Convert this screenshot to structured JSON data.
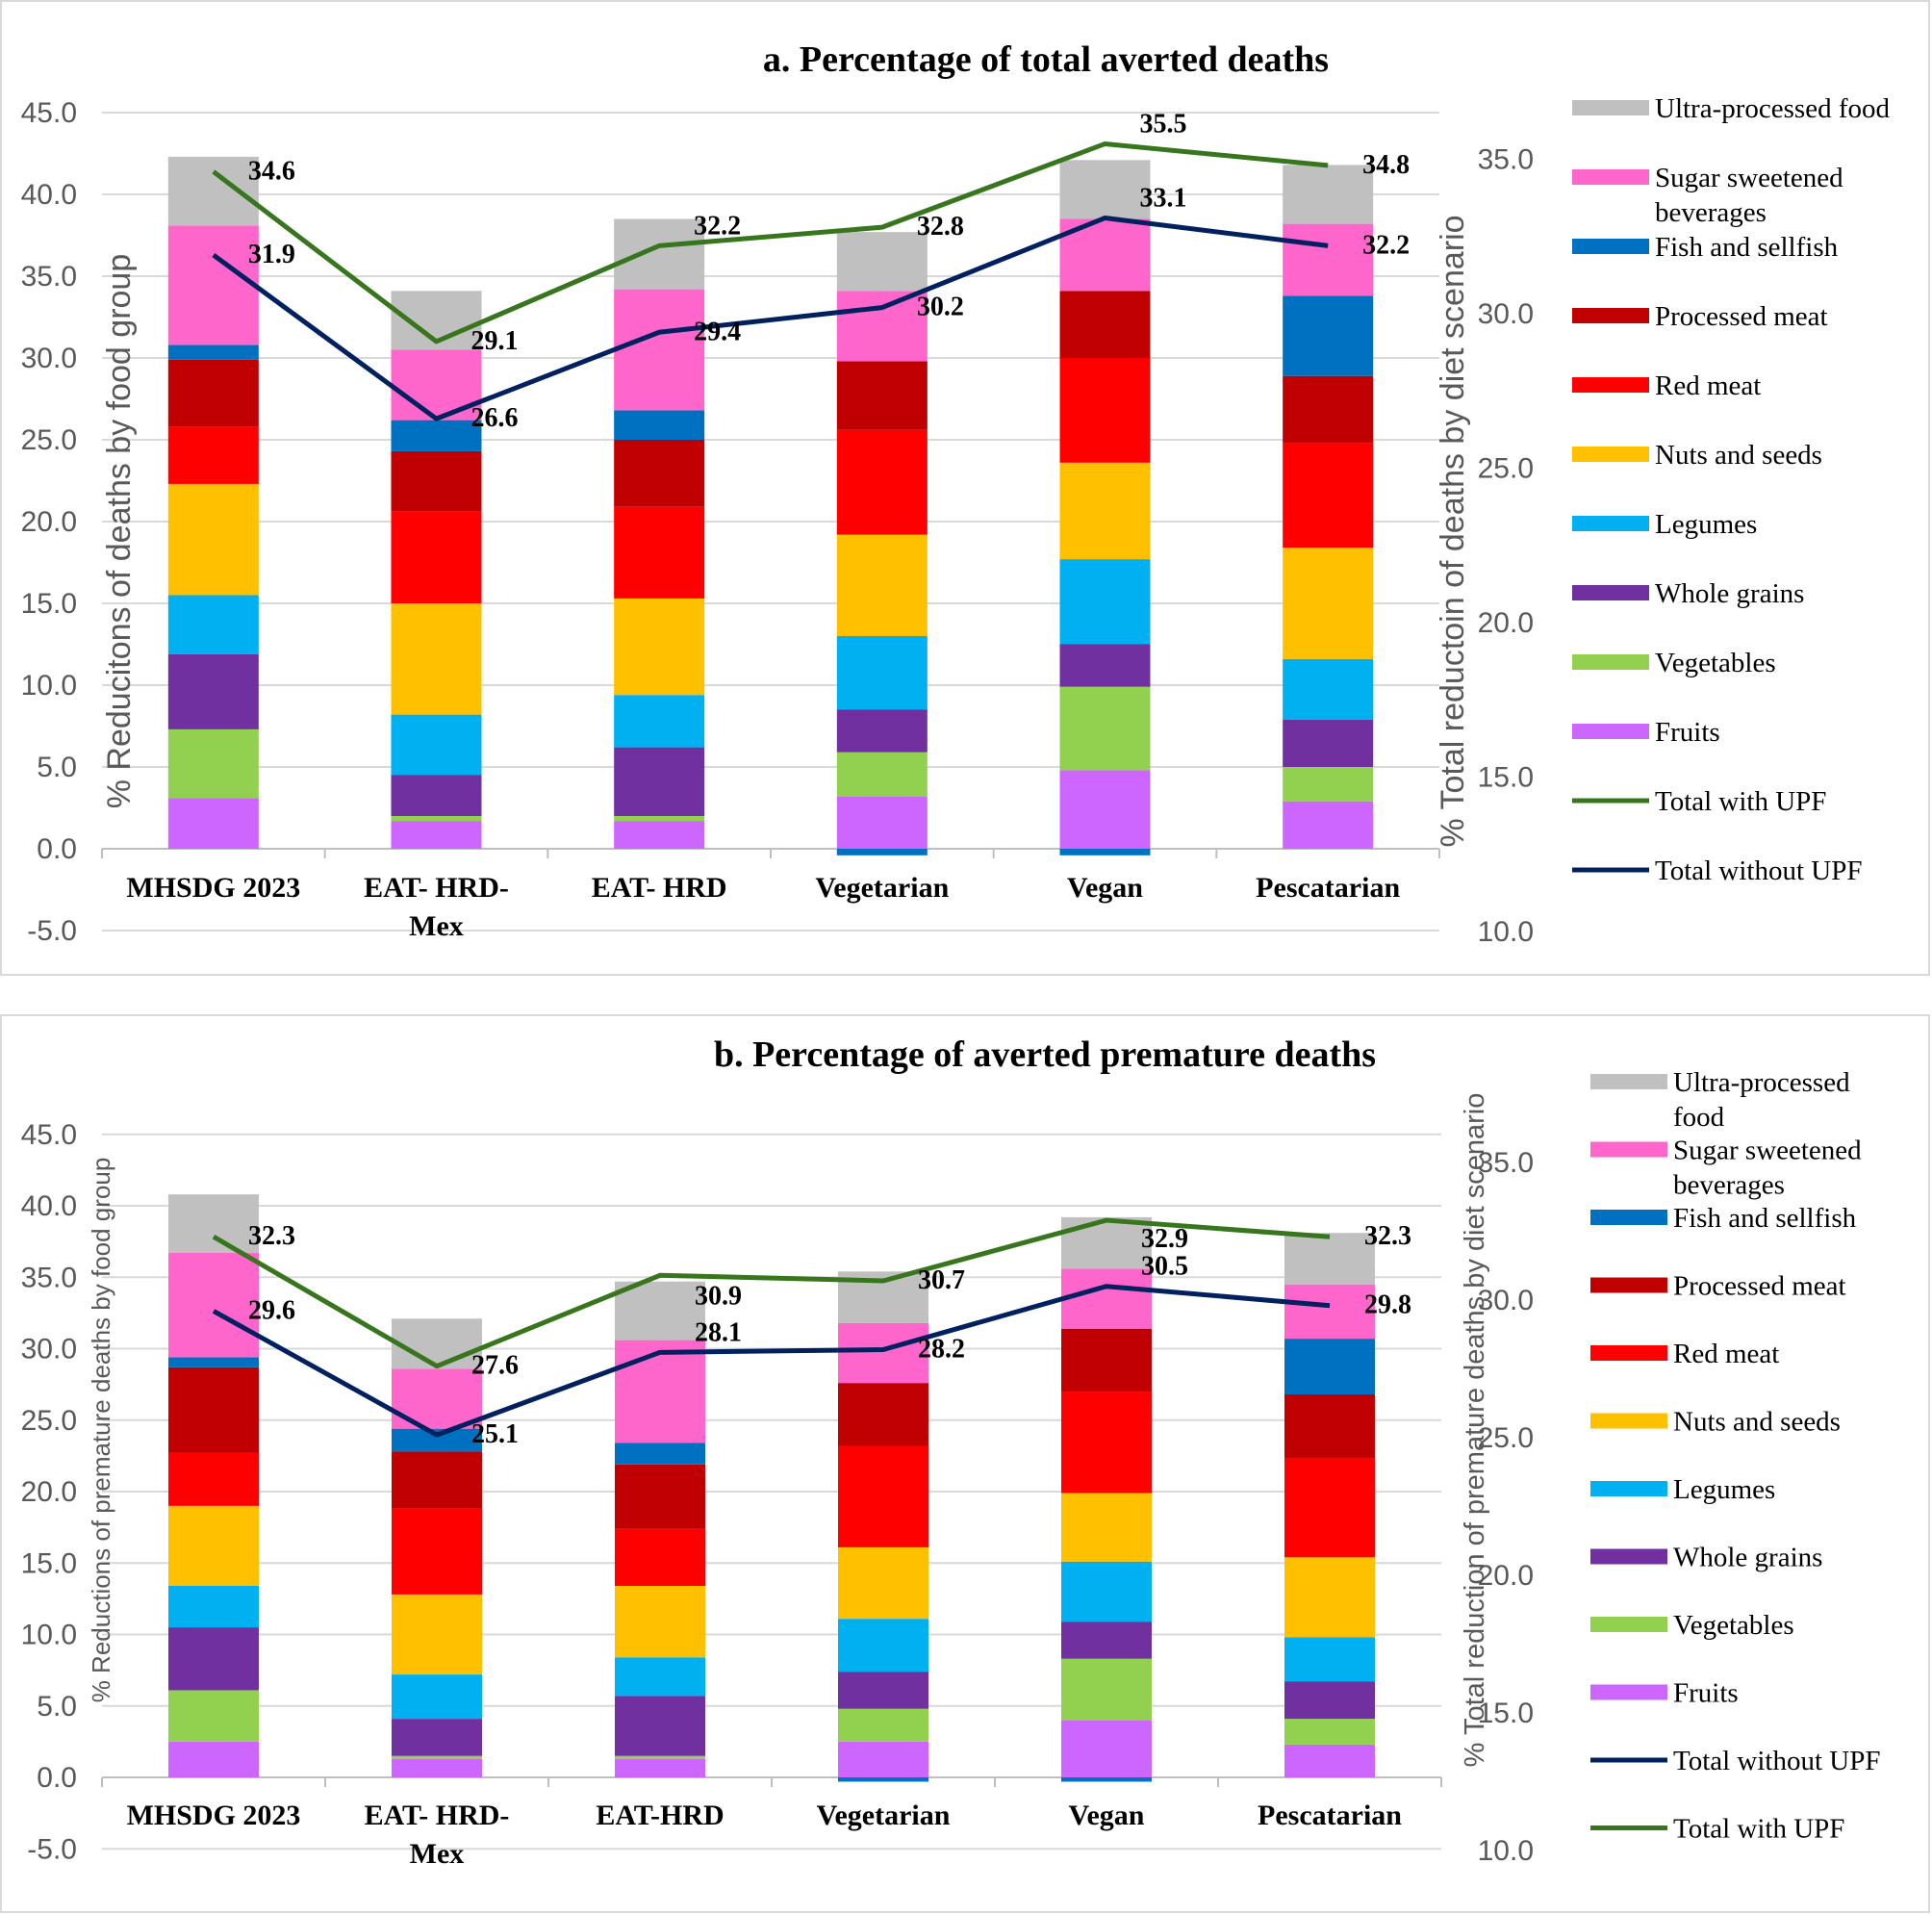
{
  "chart_data": [
    {
      "type": "bar",
      "title": "a. Percentage of total averted deaths",
      "ylabel": "% Reducitons of deaths  by food group",
      "y2label": "% Total reductoin of deaths by diet scenario",
      "ylim": [
        -5,
        45
      ],
      "y2lim": [
        10,
        37.5
      ],
      "yticks": [
        "45.0",
        "40.0",
        "35.0",
        "30.0",
        "25.0",
        "20.0",
        "15.0",
        "10.0",
        "5.0",
        "0.0",
        "-5.0"
      ],
      "y2ticks": [
        "35.0",
        "30.0",
        "25.0",
        "20.0",
        "15.0",
        "10.0"
      ],
      "categories": [
        "MHSDG 2023",
        "EAT- HRD-Mex",
        "EAT- HRD",
        "Vegetarian",
        "Vegan",
        "Pescatarian"
      ],
      "category_lines": [
        [
          "MHSDG 2023"
        ],
        [
          "EAT- HRD-",
          "Mex"
        ],
        [
          "EAT- HRD"
        ],
        [
          "Vegetarian"
        ],
        [
          "Vegan"
        ],
        [
          "Pescatarian"
        ]
      ],
      "stack_series": [
        {
          "name": "Fruits",
          "color": "#CC66FF",
          "values": [
            3.1,
            1.7,
            1.7,
            3.2,
            4.8,
            2.9
          ]
        },
        {
          "name": "Vegetables",
          "color": "#92D050",
          "values": [
            4.2,
            0.3,
            0.3,
            2.7,
            5.1,
            2.1
          ]
        },
        {
          "name": "Whole grains",
          "color": "#7030A0",
          "values": [
            4.6,
            2.5,
            4.2,
            2.6,
            2.6,
            2.9
          ]
        },
        {
          "name": "Legumes",
          "color": "#00B0F0",
          "values": [
            3.6,
            3.7,
            3.2,
            4.5,
            5.2,
            3.7
          ]
        },
        {
          "name": "Nuts and seeds",
          "color": "#FFC000",
          "values": [
            6.8,
            6.8,
            5.9,
            6.2,
            5.9,
            6.8
          ]
        },
        {
          "name": "Red meat",
          "color": "#FF0000",
          "values": [
            3.5,
            5.6,
            5.6,
            6.4,
            6.4,
            6.4
          ]
        },
        {
          "name": "Processed meat",
          "color": "#C00000",
          "values": [
            4.1,
            3.7,
            4.1,
            4.2,
            4.1,
            4.1
          ]
        },
        {
          "name": "Fish and sellfish",
          "color": "#0070C0",
          "values": [
            0.9,
            1.9,
            1.8,
            -0.4,
            -0.4,
            4.9
          ]
        },
        {
          "name": "Sugar sweetened beverages",
          "color": "#FF66CC",
          "values": [
            7.3,
            4.3,
            7.4,
            4.3,
            4.4,
            4.4
          ]
        },
        {
          "name": "Ultra-processed food",
          "color": "#C0C0C0",
          "values": [
            4.2,
            3.6,
            4.3,
            3.6,
            3.6,
            3.6
          ]
        }
      ],
      "line_series": [
        {
          "name": "Total with UPF",
          "color": "#38761D",
          "values": [
            34.6,
            29.1,
            32.2,
            32.8,
            35.5,
            34.8
          ],
          "labels": [
            "34.6",
            "29.1",
            "32.2",
            "32.8",
            "35.5",
            "34.8"
          ]
        },
        {
          "name": "Total without UPF",
          "color": "#002060",
          "values": [
            31.9,
            26.6,
            29.4,
            30.2,
            33.1,
            32.2
          ],
          "labels": [
            "31.9",
            "26.6",
            "29.4",
            "30.2",
            "33.1",
            "32.2"
          ]
        }
      ],
      "legend": [
        {
          "lines": [
            "Ultra-processed food"
          ],
          "color": "#C0C0C0",
          "kind": "bar"
        },
        {
          "lines": [
            "Sugar sweetened",
            "beverages"
          ],
          "color": "#FF66CC",
          "kind": "bar"
        },
        {
          "lines": [
            "Fish and sellfish"
          ],
          "color": "#0070C0",
          "kind": "bar"
        },
        {
          "lines": [
            "Processed meat"
          ],
          "color": "#C00000",
          "kind": "bar"
        },
        {
          "lines": [
            "Red meat"
          ],
          "color": "#FF0000",
          "kind": "bar"
        },
        {
          "lines": [
            "Nuts and seeds"
          ],
          "color": "#FFC000",
          "kind": "bar"
        },
        {
          "lines": [
            "Legumes"
          ],
          "color": "#00B0F0",
          "kind": "bar"
        },
        {
          "lines": [
            "Whole grains"
          ],
          "color": "#7030A0",
          "kind": "bar"
        },
        {
          "lines": [
            "Vegetables"
          ],
          "color": "#92D050",
          "kind": "bar"
        },
        {
          "lines": [
            "Fruits"
          ],
          "color": "#CC66FF",
          "kind": "bar"
        },
        {
          "lines": [
            "Total with UPF"
          ],
          "color": "#38761D",
          "kind": "line"
        },
        {
          "lines": [
            "Total without UPF"
          ],
          "color": "#002060",
          "kind": "line"
        }
      ],
      "legend_position": "right",
      "grid": true
    },
    {
      "type": "bar",
      "title": "b. Percentage of averted premature deaths",
      "ylabel": "% Reductions of premature deaths by food group",
      "y2label": "% Total reduction of premature deaths by diet scenario",
      "ylim": [
        -5,
        45
      ],
      "y2lim": [
        10,
        37.5
      ],
      "yticks": [
        "45.0",
        "40.0",
        "35.0",
        "30.0",
        "25.0",
        "20.0",
        "15.0",
        "10.0",
        "5.0",
        "0.0",
        "-5.0"
      ],
      "y2ticks": [
        "35.0",
        "30.0",
        "25.0",
        "20.0",
        "15.0",
        "10.0"
      ],
      "categories": [
        "MHSDG 2023",
        "EAT- HRD-Mex",
        "EAT-HRD",
        "Vegetarian",
        "Vegan",
        "Pescatarian"
      ],
      "category_lines": [
        [
          "MHSDG 2023"
        ],
        [
          "EAT- HRD-",
          "Mex"
        ],
        [
          "EAT-HRD"
        ],
        [
          "Vegetarian"
        ],
        [
          "Vegan"
        ],
        [
          "Pescatarian"
        ]
      ],
      "stack_series": [
        {
          "name": "Fruits",
          "color": "#CC66FF",
          "values": [
            2.5,
            1.3,
            1.3,
            2.5,
            4.0,
            2.3
          ]
        },
        {
          "name": "Vegetables",
          "color": "#92D050",
          "values": [
            3.6,
            0.2,
            0.2,
            2.3,
            4.3,
            1.8
          ]
        },
        {
          "name": "Whole grains",
          "color": "#7030A0",
          "values": [
            4.4,
            2.6,
            4.2,
            2.6,
            2.6,
            2.6
          ]
        },
        {
          "name": "Legumes",
          "color": "#00B0F0",
          "values": [
            2.9,
            3.1,
            2.7,
            3.7,
            4.2,
            3.1
          ]
        },
        {
          "name": "Nuts and seeds",
          "color": "#FFC000",
          "values": [
            5.6,
            5.6,
            5.0,
            5.0,
            4.8,
            5.6
          ]
        },
        {
          "name": "Red meat",
          "color": "#FF0000",
          "values": [
            3.7,
            6.0,
            4.0,
            7.1,
            7.1,
            6.9
          ]
        },
        {
          "name": "Processed meat",
          "color": "#C00000",
          "values": [
            6.0,
            4.0,
            4.5,
            4.4,
            4.4,
            4.5
          ]
        },
        {
          "name": "Fish and sellfish",
          "color": "#0070C0",
          "values": [
            0.7,
            1.6,
            1.5,
            -0.3,
            -0.3,
            3.9
          ]
        },
        {
          "name": "Sugar sweetened beverages",
          "color": "#FF66CC",
          "values": [
            7.3,
            4.2,
            7.2,
            4.2,
            4.2,
            3.8
          ]
        },
        {
          "name": "Ultra-processed food",
          "color": "#C0C0C0",
          "values": [
            4.1,
            3.5,
            4.1,
            3.6,
            3.6,
            3.6
          ]
        }
      ],
      "line_series": [
        {
          "name": "Total without UPF",
          "color": "#002060",
          "values": [
            29.6,
            25.1,
            28.1,
            28.2,
            30.5,
            29.8
          ],
          "labels": [
            "29.6",
            "25.1",
            "28.1",
            "28.2",
            "30.5",
            "29.8"
          ]
        },
        {
          "name": "Total with UPF",
          "color": "#38761D",
          "values": [
            32.3,
            27.6,
            30.9,
            30.7,
            32.9,
            32.3
          ],
          "labels": [
            "32.3",
            "27.6",
            "30.9",
            "30.7",
            "32.9",
            "32.3"
          ]
        }
      ],
      "legend": [
        {
          "lines": [
            "Ultra-processed",
            "food"
          ],
          "color": "#C0C0C0",
          "kind": "bar"
        },
        {
          "lines": [
            "Sugar sweetened",
            "beverages"
          ],
          "color": "#FF66CC",
          "kind": "bar"
        },
        {
          "lines": [
            "Fish and sellfish"
          ],
          "color": "#0070C0",
          "kind": "bar"
        },
        {
          "lines": [
            "Processed meat"
          ],
          "color": "#C00000",
          "kind": "bar"
        },
        {
          "lines": [
            "Red meat"
          ],
          "color": "#FF0000",
          "kind": "bar"
        },
        {
          "lines": [
            "Nuts and seeds"
          ],
          "color": "#FFC000",
          "kind": "bar"
        },
        {
          "lines": [
            "Legumes"
          ],
          "color": "#00B0F0",
          "kind": "bar"
        },
        {
          "lines": [
            "Whole grains"
          ],
          "color": "#7030A0",
          "kind": "bar"
        },
        {
          "lines": [
            "Vegetables"
          ],
          "color": "#92D050",
          "kind": "bar"
        },
        {
          "lines": [
            "Fruits"
          ],
          "color": "#CC66FF",
          "kind": "bar"
        },
        {
          "lines": [
            "Total without UPF"
          ],
          "color": "#002060",
          "kind": "line"
        },
        {
          "lines": [
            "Total with UPF"
          ],
          "color": "#38761D",
          "kind": "line"
        }
      ],
      "legend_position": "right",
      "grid": true
    }
  ]
}
